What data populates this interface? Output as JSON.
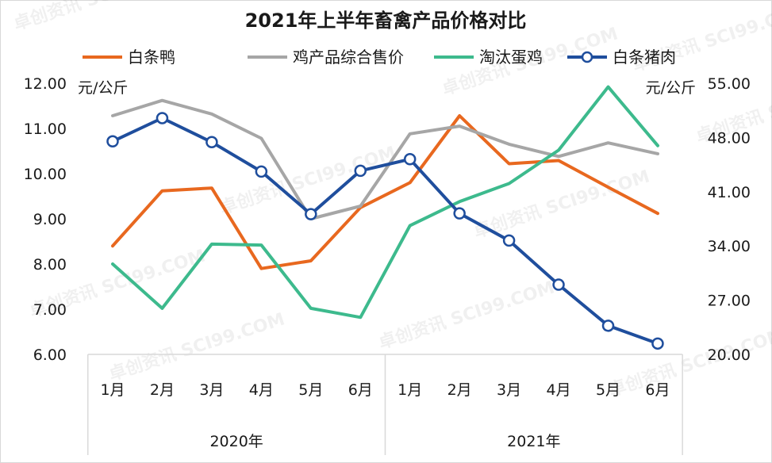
{
  "chart_data": {
    "type": "line",
    "title": "2021年上半年畜禽产品价格对比",
    "left_axis": {
      "unit": "元/公斤",
      "ylim": [
        6.0,
        12.0
      ],
      "ticks": [
        "12.00",
        "11.00",
        "10.00",
        "9.00",
        "8.00",
        "7.00",
        "6.00"
      ]
    },
    "right_axis": {
      "unit": "元/公斤",
      "ylim": [
        20.0,
        55.0
      ],
      "ticks": [
        "55.00",
        "48.00",
        "41.00",
        "34.00",
        "27.00",
        "20.00"
      ]
    },
    "categories": [
      "1月",
      "2月",
      "3月",
      "4月",
      "5月",
      "6月",
      "1月",
      "2月",
      "3月",
      "4月",
      "5月",
      "6月"
    ],
    "groups": [
      {
        "label": "2020年",
        "span": [
          0,
          5
        ]
      },
      {
        "label": "2021年",
        "span": [
          6,
          11
        ]
      }
    ],
    "grid": false,
    "legend_position": "top",
    "series": [
      {
        "name": "白条鸭",
        "axis": "left",
        "color": "#e8681f",
        "marker": false,
        "values": [
          8.4,
          9.62,
          9.68,
          7.9,
          8.07,
          9.25,
          9.8,
          11.28,
          10.22,
          10.29,
          9.7,
          9.12
        ]
      },
      {
        "name": "鸡产品综合售价",
        "axis": "left",
        "color": "#a6a6a6",
        "marker": false,
        "values": [
          11.28,
          11.62,
          11.32,
          10.78,
          9.0,
          9.28,
          10.88,
          11.05,
          10.65,
          10.38,
          10.68,
          10.44
        ]
      },
      {
        "name": "淘汰蛋鸡",
        "axis": "left",
        "color": "#3dba8d",
        "marker": false,
        "values": [
          8.0,
          7.02,
          8.44,
          8.42,
          7.02,
          6.82,
          8.85,
          9.38,
          9.78,
          10.52,
          11.92,
          10.62
        ]
      },
      {
        "name": "白条猪肉",
        "axis": "right",
        "color": "#1f4e9d",
        "marker": true,
        "values": [
          47.5,
          50.5,
          47.4,
          43.6,
          38.1,
          43.7,
          45.2,
          38.2,
          34.7,
          29.0,
          23.7,
          21.4
        ]
      }
    ]
  },
  "watermark": "卓创资讯 SCI99.COM"
}
